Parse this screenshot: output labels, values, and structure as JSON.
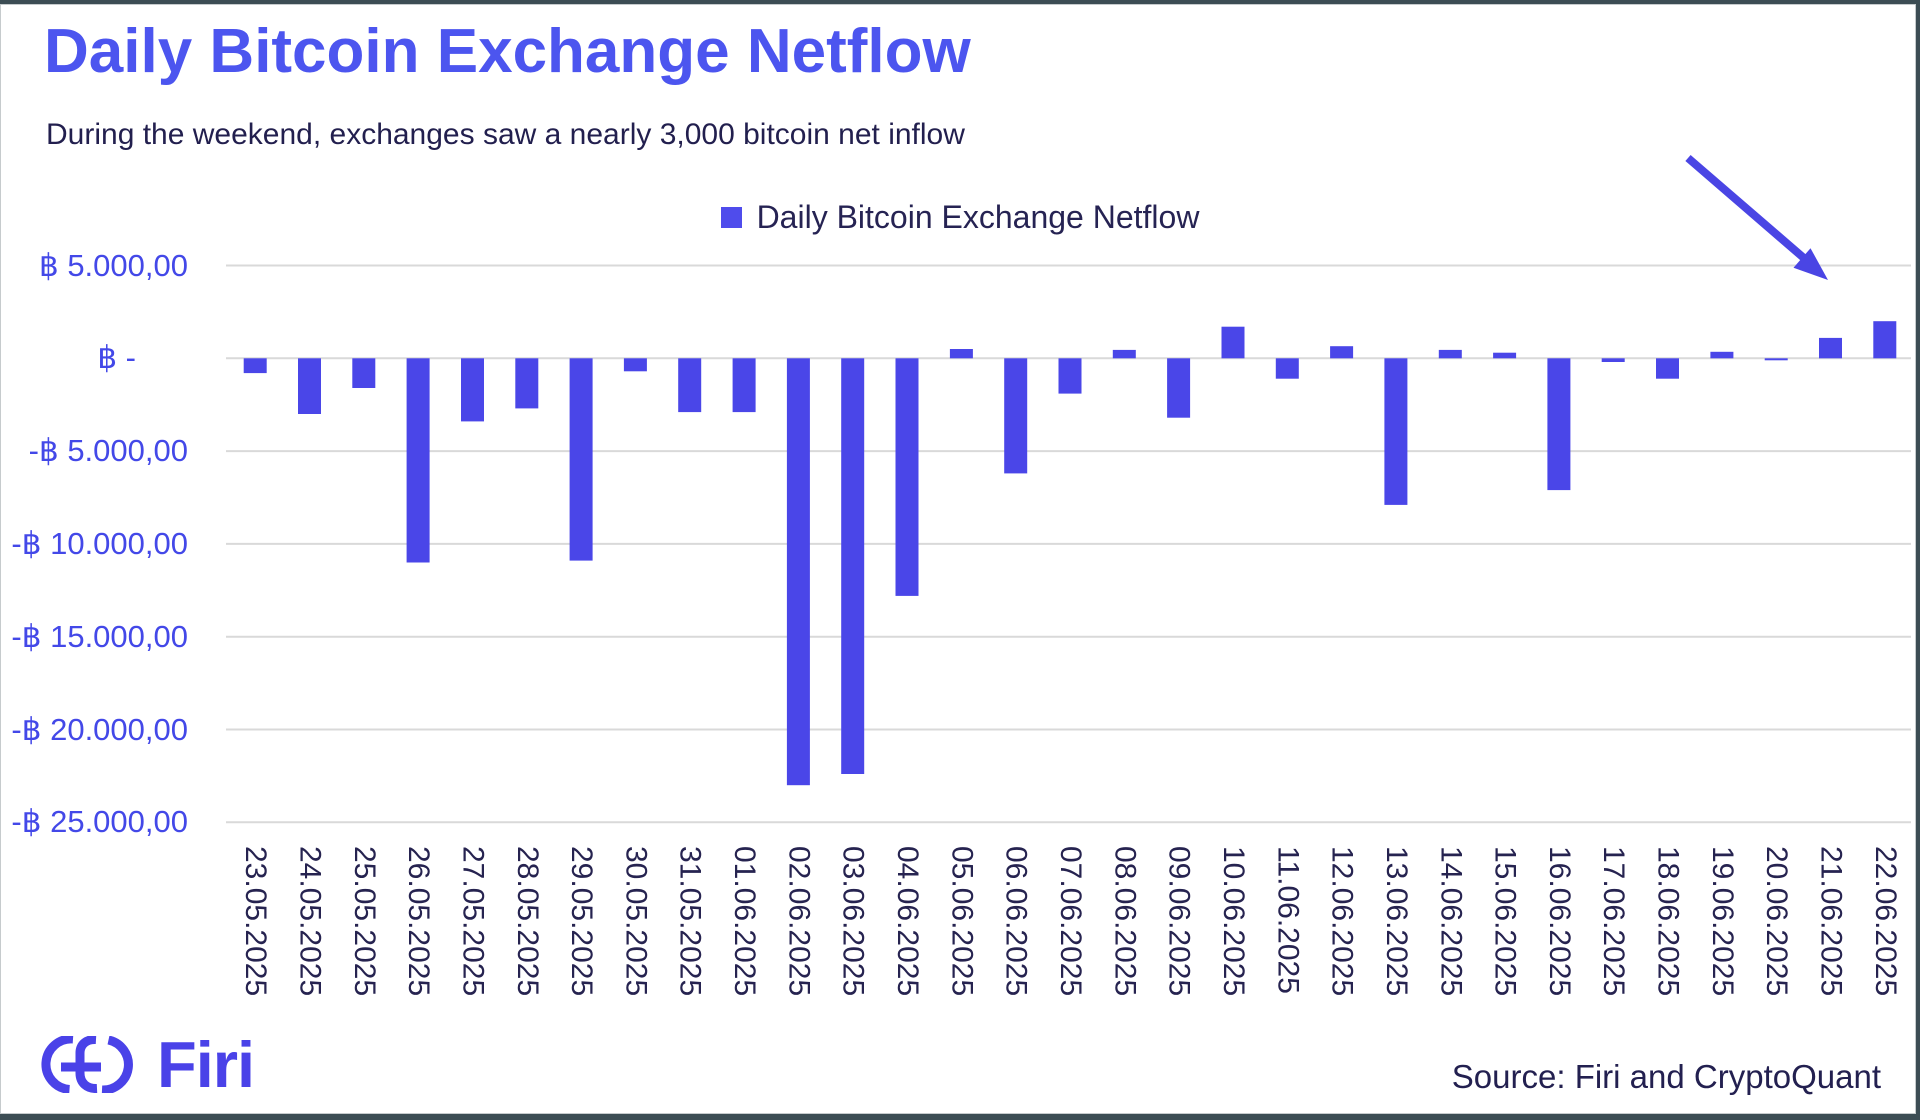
{
  "header": {
    "title": "Daily Bitcoin Exchange Netflow",
    "subtitle": "During the weekend, exchanges saw a nearly 3,000 bitcoin net inflow"
  },
  "chart_data": {
    "type": "bar",
    "title": "Daily Bitcoin Exchange Netflow",
    "legend_label": "Daily Bitcoin Exchange Netflow",
    "legend_position": "top-center",
    "grid": "horizontal",
    "ylim": [
      -25000,
      5000
    ],
    "unit": "BTC (฿)",
    "categories": [
      "23.05.2025",
      "24.05.2025",
      "25.05.2025",
      "26.05.2025",
      "27.05.2025",
      "28.05.2025",
      "29.05.2025",
      "30.05.2025",
      "31.05.2025",
      "01.06.2025",
      "02.06.2025",
      "03.06.2025",
      "04.06.2025",
      "05.06.2025",
      "06.06.2025",
      "07.06.2025",
      "08.06.2025",
      "09.06.2025",
      "10.06.2025",
      "11.06.2025",
      "12.06.2025",
      "13.06.2025",
      "14.06.2025",
      "15.06.2025",
      "16.06.2025",
      "17.06.2025",
      "18.06.2025",
      "19.06.2025",
      "20.06.2025",
      "21.06.2025",
      "22.06.2025"
    ],
    "values": [
      -800,
      -3000,
      -1600,
      -11000,
      -3400,
      -2700,
      -10900,
      -700,
      -2900,
      -2900,
      -23000,
      -22400,
      -12800,
      500,
      -6200,
      -1900,
      450,
      -3200,
      1700,
      -1100,
      650,
      -7900,
      450,
      300,
      -7100,
      -200,
      -1100,
      350,
      -100,
      1100,
      2000
    ],
    "yticks": [
      {
        "value": 5000,
        "label": "฿ 5.000,00"
      },
      {
        "value": 0,
        "label": "฿ -",
        "zero": true
      },
      {
        "value": -5000,
        "label": "-฿ 5.000,00"
      },
      {
        "value": -10000,
        "label": "-฿ 10.000,00"
      },
      {
        "value": -15000,
        "label": "-฿ 15.000,00"
      },
      {
        "value": -20000,
        "label": "-฿ 20.000,00"
      },
      {
        "value": -25000,
        "label": "-฿ 25.000,00"
      }
    ],
    "bar_color": "#4a46e8",
    "gridline_color": "#d9d9d9",
    "annotation": {
      "type": "arrow",
      "color": "#4a45e4",
      "points_to": "weekend inflow bars 21-22.06.2025"
    }
  },
  "footer": {
    "logo_text": "Firi",
    "source": "Source: Firi and CryptoQuant"
  },
  "colors": {
    "title": "#4c55ef",
    "axis_labels": "#4348e8",
    "text_dark": "#221f4e",
    "frame": "#3c4d54"
  }
}
